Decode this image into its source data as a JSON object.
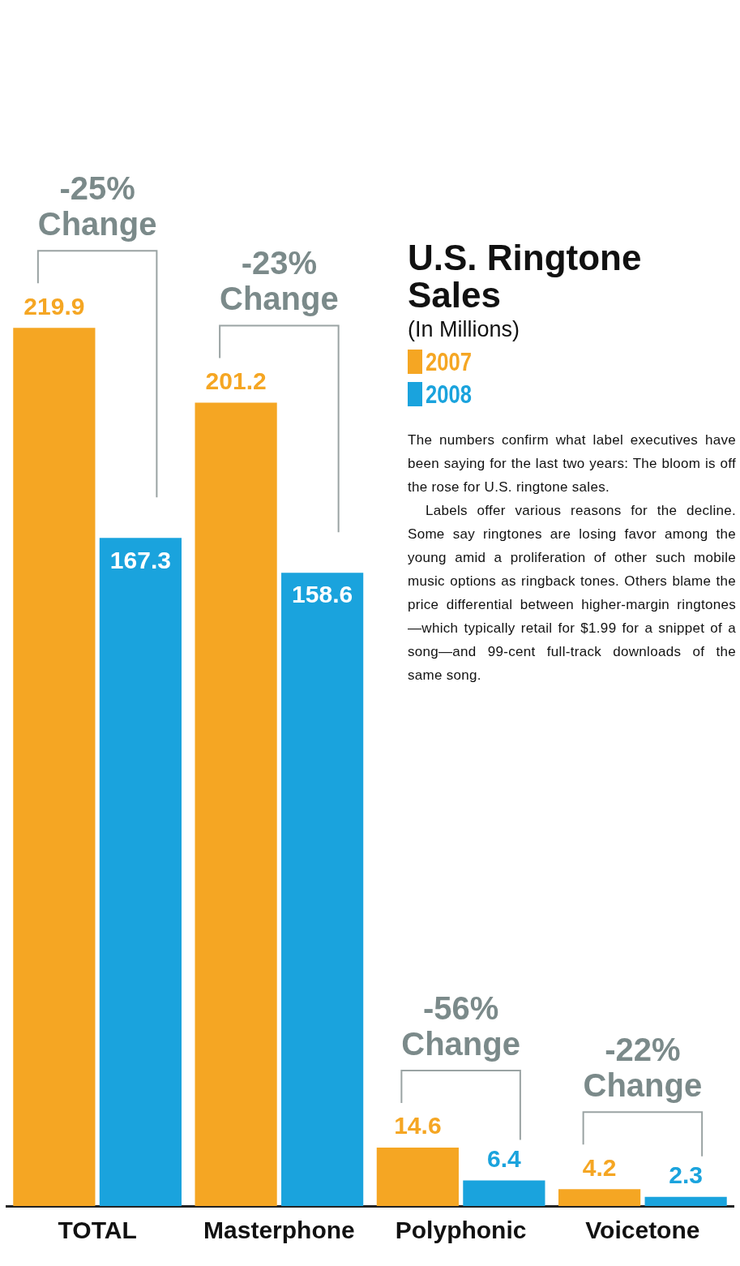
{
  "chart_data": {
    "type": "bar",
    "title": "U.S. Ringtone Sales",
    "subtitle": "(In Millions)",
    "categories": [
      "TOTAL",
      "Masterphone",
      "Polyphonic",
      "Voicetone"
    ],
    "series": [
      {
        "name": "2007",
        "color": "#f5a623",
        "values": [
          219.9,
          201.2,
          14.6,
          4.2
        ]
      },
      {
        "name": "2008",
        "color": "#1aa3dd",
        "values": [
          167.3,
          158.6,
          6.4,
          2.3
        ]
      }
    ],
    "data_labels": true,
    "legend": "top right",
    "annotations": [
      {
        "text": "-25% Change",
        "x": "TOTAL",
        "y": 219.9
      },
      {
        "text": "-23% Change",
        "x": "Masterphone",
        "y": 201.2
      },
      {
        "text": "-56% Change",
        "x": "Polyphonic",
        "y": 14.6
      },
      {
        "text": "-22% Change",
        "x": "Voicetone",
        "y": 4.2
      },
      "The numbers confirm what label executives have been saying for the last two years: The bloom is off the rose for U.S. ringtone sales.",
      "Labels offer various reasons for the decline. Some say ringtones are losing favor among the young amid a proliferation of other such mobile music options as ringback tones. Others blame the price differential between higher-margin ringtones—which typically retail for $1.99 for a snippet of a song—and 99-cent full-track downloads of the same song."
    ]
  }
}
